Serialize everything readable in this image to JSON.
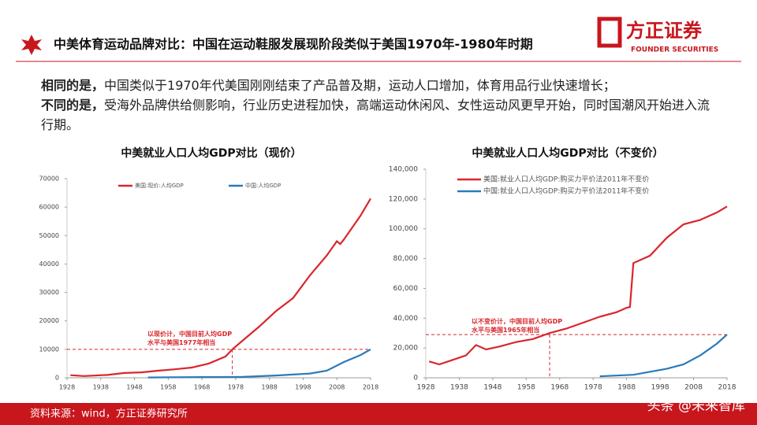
{
  "header": {
    "title": "中美体育运动品牌对比：中国在运动鞋服发展现阶段类似于美国1970年-1980年时期",
    "logo": "方正证券",
    "logo_sub": "FOUNDER SECURITIES"
  },
  "body": [
    {
      "lead": "相同的是，",
      "text": "中国类似于1970年代美国刚刚结束了产品普及期，运动人口增加，体育用品行业快速增长；"
    },
    {
      "lead": "不同的是，",
      "text": "受海外品牌供给侧影响，行业历史进程加快，高端运动休闲风、女性运动风更早开始，同时国潮风开始进入流行期。"
    }
  ],
  "chart_data": [
    {
      "type": "line",
      "title": "中美就业人口人均GDP对比（现价）",
      "xlim": [
        1928,
        2018
      ],
      "xticks": [
        1928,
        1938,
        1948,
        1958,
        1968,
        1978,
        1988,
        1998,
        2008,
        2018
      ],
      "ylim": [
        0,
        70000
      ],
      "yticks": [
        0,
        10000,
        20000,
        30000,
        40000,
        50000,
        60000,
        70000
      ],
      "annotation": "以现价计，中国目前人均GDP水平与美国1977年相当",
      "reference_lines": {
        "x": 1977,
        "y": 10000
      },
      "series": [
        {
          "name": "美国:现价:人均GDP",
          "color": "#d9262b",
          "x": [
            1929,
            1933,
            1940,
            1945,
            1950,
            1955,
            1960,
            1965,
            1970,
            1975,
            1977,
            1980,
            1985,
            1990,
            1995,
            2000,
            2005,
            2008,
            2009,
            2010,
            2015,
            2018
          ],
          "values": [
            900,
            600,
            1000,
            1700,
            1900,
            2500,
            3000,
            3600,
            5000,
            7500,
            10000,
            13000,
            18000,
            23500,
            28000,
            36000,
            43000,
            48000,
            47000,
            48500,
            57000,
            63000
          ]
        },
        {
          "name": "中国:人均GDP",
          "color": "#2a7ab9",
          "x": [
            1952,
            1960,
            1970,
            1980,
            1990,
            2000,
            2005,
            2010,
            2015,
            2018
          ],
          "values": [
            100,
            200,
            250,
            300,
            800,
            1500,
            2500,
            5500,
            8000,
            10000
          ]
        }
      ]
    },
    {
      "type": "line",
      "title": "中美就业人口人均GDP对比（不变价）",
      "xlim": [
        1928,
        2018
      ],
      "xticks": [
        1928,
        1938,
        1948,
        1958,
        1968,
        1978,
        1988,
        1998,
        2008,
        2018
      ],
      "ylim": [
        0,
        140000
      ],
      "yticks": [
        0,
        {
          "value": 20000,
          "label": "20,000"
        },
        {
          "value": 40000,
          "label": "40,000"
        },
        {
          "value": 60000,
          "label": "60,000"
        },
        {
          "value": 80000,
          "label": "80,000"
        },
        {
          "value": 100000,
          "label": "100,000"
        },
        {
          "value": 120000,
          "label": "120,000"
        },
        {
          "value": 140000,
          "label": "140,000"
        }
      ],
      "annotation": "以不变价计，中国目前人均GDP水平与美国1965年相当",
      "reference_lines": {
        "x": 1965,
        "y": 29000
      },
      "series": [
        {
          "name": "美国:就业人口人均GDP:购买力平价法2011年不变价",
          "color": "#d9262b",
          "x": [
            1929,
            1932,
            1936,
            1940,
            1943,
            1946,
            1950,
            1955,
            1960,
            1965,
            1970,
            1975,
            1980,
            1985,
            1988,
            1989,
            1990,
            1995,
            2000,
            2005,
            2010,
            2015,
            2018
          ],
          "values": [
            11000,
            9000,
            12000,
            15000,
            22000,
            19000,
            21000,
            24000,
            26000,
            30000,
            33000,
            37000,
            41000,
            44000,
            47000,
            47500,
            77000,
            82000,
            94000,
            103000,
            106000,
            111000,
            115000
          ]
        },
        {
          "name": "中国:就业人口人均GDP:购买力平价法2011年不变价",
          "color": "#2a7ab9",
          "x": [
            1980,
            1990,
            2000,
            2005,
            2010,
            2015,
            2018
          ],
          "values": [
            1000,
            2000,
            6000,
            9000,
            15000,
            23000,
            29000
          ]
        }
      ]
    }
  ],
  "footer": {
    "source": "资料来源：wind，方正证券研究所",
    "watermark": "头条 @未来智库"
  }
}
